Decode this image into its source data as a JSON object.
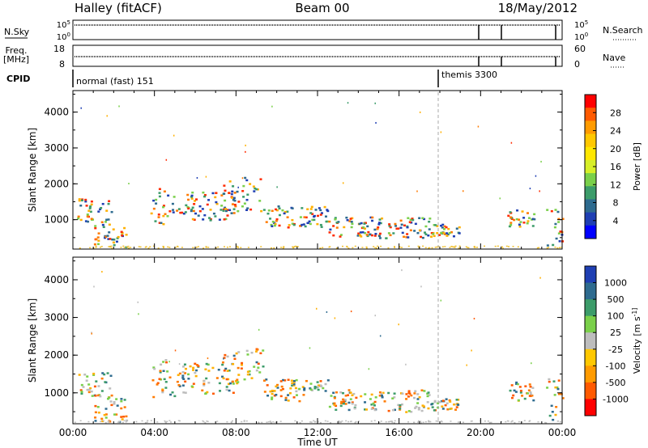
{
  "header": {
    "station": "Halley (fitACF)",
    "beam": "Beam 00",
    "date": "18/May/2012"
  },
  "noise_panel": {
    "left_label": "N.Sky",
    "right_label": "N.Search",
    "ticks": [
      "10^5",
      "10^0"
    ]
  },
  "freq_panel": {
    "left_label_1": "Freq.",
    "left_label_2": "[MHz]",
    "left_ticks": [
      "18",
      "8"
    ],
    "right_label": "Nave",
    "right_ticks": [
      "60",
      "0"
    ]
  },
  "cpid_panel": {
    "label": "CPID",
    "modes": [
      "normal (fast) 151",
      "themis 3300"
    ]
  },
  "chart_data": [
    {
      "type": "heatmap",
      "quantity": "Power",
      "xlabel": "",
      "ylabel": "Slant Range [km]",
      "xlim": [
        "00:00",
        "24:00"
      ],
      "ylim": [
        180,
        4600
      ],
      "x_ticks": [
        "00:00",
        "04:00",
        "08:00",
        "12:00",
        "16:00",
        "20:00",
        "00:00"
      ],
      "y_ticks": [
        1000,
        2000,
        3000,
        4000
      ],
      "colorbar": {
        "label": "Power [dB]",
        "ticks": [
          "28",
          "24",
          "20",
          "16",
          "12",
          "8",
          "4"
        ],
        "colors": [
          "#ff0000",
          "#ff5a00",
          "#ff9b00",
          "#ffc800",
          "#ffe700",
          "#d7ef28",
          "#7ad04a",
          "#3c9c6a",
          "#2e6b8f",
          "#1f3fb3",
          "#0000ff"
        ]
      }
    },
    {
      "type": "heatmap",
      "quantity": "Velocity",
      "xlabel": "Time UT",
      "ylabel": "Slant Range [km]",
      "xlim": [
        "00:00",
        "24:00"
      ],
      "ylim": [
        180,
        4600
      ],
      "x_ticks": [
        "00:00",
        "04:00",
        "08:00",
        "12:00",
        "16:00",
        "20:00",
        "00:00"
      ],
      "y_ticks": [
        1000,
        2000,
        3000,
        4000
      ],
      "colorbar": {
        "label": "Velocity [m s^-1]",
        "ticks": [
          "1000",
          "500",
          "100",
          "25",
          "-25",
          "-100",
          "-500",
          "-1000"
        ],
        "colors": [
          "#1f3fb3",
          "#2e6b8f",
          "#3c9c6a",
          "#7ad04a",
          "#bdbdbd",
          "#ffc800",
          "#ff9b00",
          "#ff5a00",
          "#ff0000"
        ]
      }
    }
  ]
}
